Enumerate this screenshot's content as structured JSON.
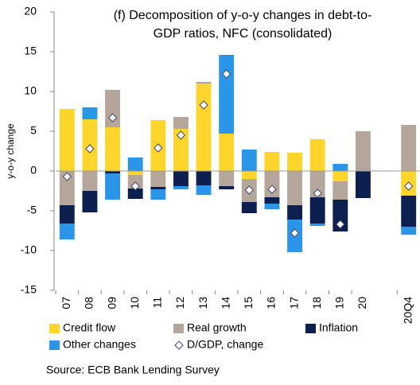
{
  "chart_data": {
    "type": "bar",
    "stacked": true,
    "title": [
      "(f) Decomposition of y-o-y changes in debt-to-",
      "GDP ratios, NFC (consolidated)"
    ],
    "y_label": "y-o-y change",
    "source": "Source: ECB Bank Lending Survey",
    "categories": [
      "07",
      "08",
      "09",
      "10",
      "11",
      "12",
      "13",
      "14",
      "15",
      "16",
      "17",
      "18",
      "19",
      "20",
      null,
      "20Q4"
    ],
    "series": [
      {
        "name": "Credit flow",
        "color": "#fdd52b",
        "values": [
          7.8,
          6.5,
          5.5,
          -0.5,
          6.4,
          5.3,
          11.0,
          4.7,
          -1.0,
          2.4,
          2.3,
          4.0,
          -1.3,
          0,
          null,
          -3.1
        ]
      },
      {
        "name": "Real growth",
        "color": "#b5a69b",
        "values": [
          -4.3,
          -2.5,
          4.7,
          -1.7,
          -2.0,
          1.5,
          0.2,
          -1.9,
          -2.9,
          -3.3,
          -4.3,
          -3.3,
          -2.3,
          5.0,
          null,
          5.8
        ]
      },
      {
        "name": "Inflation",
        "color": "#0c1f4e",
        "values": [
          -2.3,
          -2.7,
          -0.3,
          -1.3,
          -0.3,
          -1.9,
          -1.8,
          -0.4,
          -1.4,
          -0.8,
          -1.8,
          -3.3,
          -4.0,
          -3.4,
          null,
          -3.9
        ]
      },
      {
        "name": "Other changes",
        "color": "#2b96e8",
        "values": [
          -2.0,
          1.5,
          -3.3,
          1.7,
          -1.3,
          -0.4,
          -1.2,
          9.9,
          2.7,
          -0.7,
          -4.1,
          -0.3,
          0.9,
          0,
          null,
          -1.0
        ]
      },
      {
        "name": "D/GDP, change",
        "type": "scatter",
        "marker": "diamond",
        "color": "#ffffff",
        "values": [
          -0.7,
          2.8,
          6.7,
          -1.9,
          2.9,
          4.5,
          8.3,
          12.2,
          -2.4,
          -2.3,
          -7.8,
          -2.8,
          -6.7,
          null,
          null,
          -1.9
        ]
      }
    ],
    "ylim": [
      -15,
      20
    ],
    "yticks": [
      -15,
      -10,
      -5,
      0,
      5,
      10,
      15,
      20
    ],
    "grid": false,
    "legend": "bottom"
  }
}
